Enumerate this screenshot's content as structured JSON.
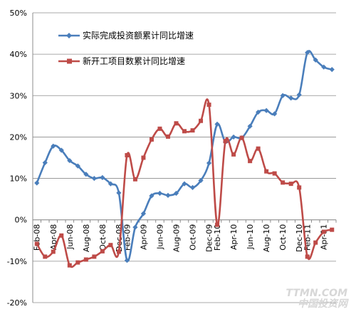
{
  "chart_data": {
    "type": "line",
    "title": "",
    "xlabel": "",
    "ylabel": "",
    "ylim": [
      -20,
      50
    ],
    "y_ticks": [
      "-20%",
      "-10%",
      "0%",
      "10%",
      "20%",
      "30%",
      "40%",
      "50%"
    ],
    "x_ticks": [
      "Feb-08",
      "Apr-08",
      "Jun-08",
      "Aug-08",
      "Oct-08",
      "Dec-08",
      "Feb-09",
      "Apr-09",
      "Jun-09",
      "Aug-09",
      "Oct-09",
      "Dec-09",
      "Feb-10",
      "Apr-10",
      "Jun-10",
      "Aug-10",
      "Oct-10",
      "Dec-10",
      "Feb-11",
      "Apr-11"
    ],
    "grid": true,
    "legend_position": "top-left",
    "x": [
      "Feb-08",
      "Mar-08",
      "Apr-08",
      "May-08",
      "Jun-08",
      "Jul-08",
      "Aug-08",
      "Sep-08",
      "Oct-08",
      "Nov-08",
      "Dec-08",
      "Feb-09",
      "Mar-09",
      "Apr-09",
      "May-09",
      "Jun-09",
      "Jul-09",
      "Aug-09",
      "Sep-09",
      "Oct-09",
      "Nov-09",
      "Dec-09",
      "Feb-10",
      "Mar-10",
      "Apr-10",
      "May-10",
      "Jun-10",
      "Jul-10",
      "Aug-10",
      "Sep-10",
      "Oct-10",
      "Nov-10",
      "Dec-10",
      "Feb-11",
      "Mar-11",
      "Apr-11",
      "May-11"
    ],
    "series": [
      {
        "name": "实际完成投资额累计同比增速",
        "color": "#4a7ebb",
        "marker": "diamond",
        "values": [
          8.9,
          13.8,
          17.8,
          16.8,
          14.3,
          13.0,
          11.0,
          10.0,
          10.2,
          8.7,
          6.5,
          -9.8,
          -1.8,
          1.5,
          5.8,
          6.4,
          5.9,
          6.4,
          8.7,
          7.8,
          9.5,
          13.7,
          23.1,
          18.8,
          20.0,
          19.8,
          22.6,
          26.0,
          26.4,
          25.6,
          30.0,
          29.4,
          30.2,
          40.4,
          38.6,
          36.9,
          36.3
        ]
      },
      {
        "name": "新开工项目数累计同比增速",
        "color": "#be4b48",
        "marker": "square",
        "values": [
          -5.8,
          -8.9,
          -7.7,
          -3.8,
          -11.0,
          -10.3,
          -9.6,
          -8.9,
          -7.6,
          -6.1,
          -7.7,
          15.6,
          9.8,
          15.0,
          19.4,
          22.0,
          20.1,
          23.3,
          21.4,
          21.6,
          23.9,
          27.8,
          -1.2,
          19.0,
          15.8,
          19.8,
          14.2,
          17.2,
          11.7,
          11.2,
          9.0,
          8.7,
          7.8,
          -8.9,
          -5.5,
          -2.9,
          -2.4
        ]
      }
    ]
  },
  "watermark": {
    "line1": "TTMN.COM",
    "line2": "中国投资网"
  }
}
